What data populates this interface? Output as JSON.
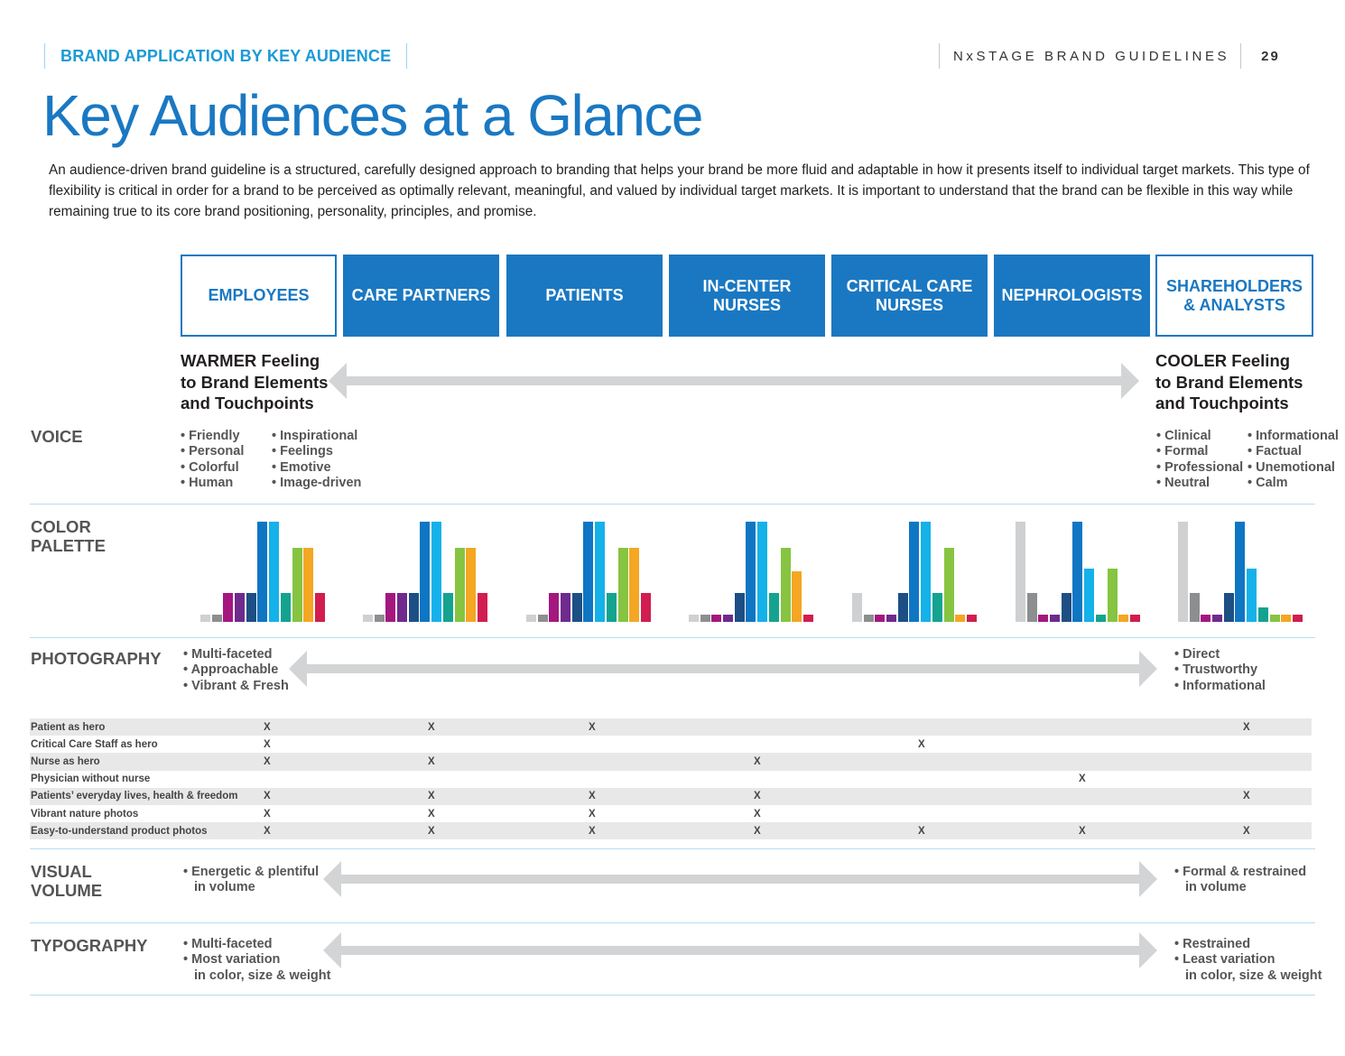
{
  "header": {
    "section": "BRAND APPLICATION BY KEY AUDIENCE",
    "guidelines": "NxSTAGE BRAND GUIDELINES",
    "page": "29"
  },
  "title": "Key Audiences at a Glance",
  "intro": "An audience-driven brand guideline is a structured, carefully designed approach to branding that helps your brand be more fluid and adaptable in how it presents itself to individual target markets. This type of flexibility is critical in order for a brand to be perceived as optimally relevant, meaningful, and valued by individual target markets. It is important to understand that the brand can be flexible in this way while remaining true to its core brand positioning, personality, principles, and promise.",
  "audiences": [
    {
      "label": "EMPLOYEES",
      "style": "outline"
    },
    {
      "label": "CARE PARTNERS",
      "style": "fill"
    },
    {
      "label": "PATIENTS",
      "style": "fill"
    },
    {
      "label": "IN-CENTER\nNURSES",
      "style": "fill"
    },
    {
      "label": "CRITICAL CARE\nNURSES",
      "style": "fill"
    },
    {
      "label": "NEPHROLOGISTS",
      "style": "fill"
    },
    {
      "label": "SHAREHOLDERS\n& ANALYSTS",
      "style": "outline"
    }
  ],
  "feeling": {
    "warmer": "WARMER Feeling\nto Brand Elements\nand Touchpoints",
    "cooler": "COOLER Feeling\nto Brand Elements\nand Touchpoints"
  },
  "voice": {
    "label": "VOICE",
    "warm_col1": [
      "Friendly",
      "Personal",
      "Colorful",
      "Human"
    ],
    "warm_col2": [
      "Inspirational",
      "Feelings",
      "Emotive",
      "Image-driven"
    ],
    "cool_col1": [
      "Clinical",
      "Formal",
      "Professional",
      "Neutral"
    ],
    "cool_col2": [
      "Informational",
      "Factual",
      "Unemotional",
      "Calm"
    ]
  },
  "color_palette": {
    "label": "COLOR\nPALETTE",
    "swatch_colors": [
      "#cfd0d1",
      "#8c8e90",
      "#a4177f",
      "#6e2a8d",
      "#1d4f84",
      "#0f76c3",
      "#15b1e9",
      "#14a38f",
      "#86c441",
      "#f5a623",
      "#d11d4f"
    ],
    "audience_levels": [
      [
        0.07,
        0.07,
        0.29,
        0.29,
        0.29,
        1.0,
        1.0,
        0.29,
        0.74,
        0.74,
        0.29
      ],
      [
        0.07,
        0.07,
        0.29,
        0.29,
        0.29,
        1.0,
        1.0,
        0.29,
        0.74,
        0.74,
        0.29
      ],
      [
        0.07,
        0.07,
        0.29,
        0.29,
        0.29,
        1.0,
        1.0,
        0.29,
        0.74,
        0.74,
        0.29
      ],
      [
        0.07,
        0.07,
        0.07,
        0.07,
        0.29,
        1.0,
        1.0,
        0.29,
        0.74,
        0.5,
        0.07
      ],
      [
        0.29,
        0.07,
        0.07,
        0.07,
        0.29,
        1.0,
        1.0,
        0.29,
        0.74,
        0.07,
        0.07
      ],
      [
        1.0,
        0.29,
        0.07,
        0.07,
        0.29,
        1.0,
        0.53,
        0.07,
        0.53,
        0.07,
        0.07
      ],
      [
        1.0,
        0.29,
        0.07,
        0.07,
        0.29,
        1.0,
        0.53,
        0.14,
        0.07,
        0.07,
        0.07
      ]
    ]
  },
  "photography": {
    "label": "PHOTOGRAPHY",
    "warm": [
      "Multi-faceted",
      "Approachable",
      "Vibrant & Fresh"
    ],
    "cool": [
      "Direct",
      "Trustworthy",
      "Informational"
    ],
    "rows": [
      {
        "label": "Patient as hero",
        "marks": [
          "X",
          "X",
          "X",
          "",
          "",
          "",
          "X"
        ]
      },
      {
        "label": "Critical Care Staff as hero",
        "marks": [
          "X",
          "",
          "",
          "",
          "X",
          "",
          ""
        ]
      },
      {
        "label": "Nurse as hero",
        "marks": [
          "X",
          "X",
          "",
          "X",
          "",
          "",
          ""
        ]
      },
      {
        "label": "Physician without nurse",
        "marks": [
          "",
          "",
          "",
          "",
          "",
          "X",
          ""
        ]
      },
      {
        "label": "Patients’ everyday lives, health & freedom",
        "marks": [
          "X",
          "X",
          "X",
          "X",
          "",
          "",
          "X"
        ]
      },
      {
        "label": "Vibrant nature photos",
        "marks": [
          "X",
          "X",
          "X",
          "X",
          "",
          "",
          ""
        ]
      },
      {
        "label": "Easy-to-understand product photos",
        "marks": [
          "X",
          "X",
          "X",
          "X",
          "X",
          "X",
          "X"
        ]
      }
    ]
  },
  "visual_volume": {
    "label": "VISUAL\nVOLUME",
    "warm": [
      "Energetic & plentiful",
      "in volume"
    ],
    "cool": [
      "Formal & restrained",
      "in volume"
    ]
  },
  "typography": {
    "label": "TYPOGRAPHY",
    "warm": [
      "Multi-faceted",
      "Most variation",
      "in color, size & weight"
    ],
    "cool": [
      "Restrained",
      "Least variation",
      "in color, size & weight"
    ]
  },
  "colors": {
    "brand_blue": "#1a78c2",
    "header_blue": "#1a9ad6",
    "arrow_gray": "#d3d4d5",
    "rule_blue": "#b7dcf3"
  }
}
